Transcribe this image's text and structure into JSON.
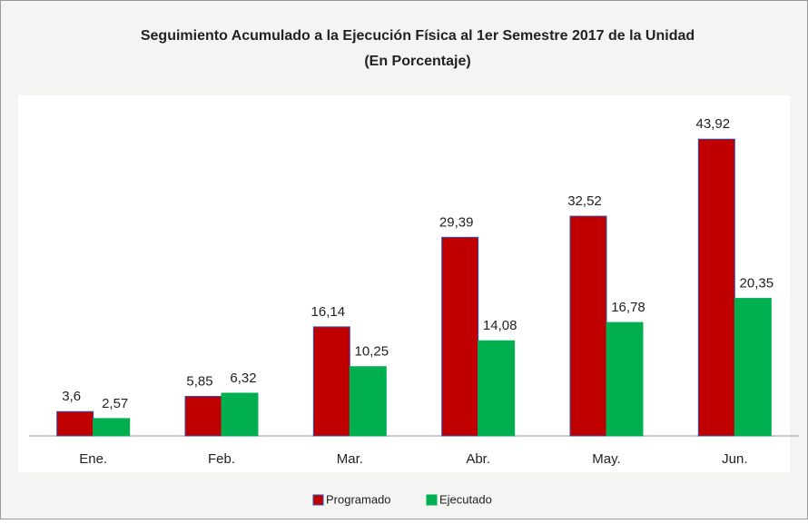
{
  "chart_data": {
    "type": "bar",
    "title": "Seguimiento Acumulado a la Ejecución Física al 1er Semestre 2017 de la Unidad",
    "subtitle": "(En Porcentaje)",
    "categories": [
      "Ene.",
      "Feb.",
      "Mar.",
      "Abr.",
      "May.",
      "Jun."
    ],
    "series": [
      {
        "name": "Programado",
        "color": "#c00000",
        "values": [
          3.6,
          5.85,
          16.14,
          29.39,
          32.52,
          43.92
        ],
        "value_labels": [
          "3,6",
          "5,85",
          "16,14",
          "29,39",
          "32,52",
          "43,92"
        ]
      },
      {
        "name": "Ejecutado",
        "color": "#00b050",
        "values": [
          2.57,
          6.32,
          10.25,
          14.08,
          16.78,
          20.35
        ],
        "value_labels": [
          "2,57",
          "6,32",
          "10,25",
          "14,08",
          "16,78",
          "20,35"
        ]
      }
    ],
    "ylim": [
      0,
      50
    ],
    "legend": "bottom"
  }
}
